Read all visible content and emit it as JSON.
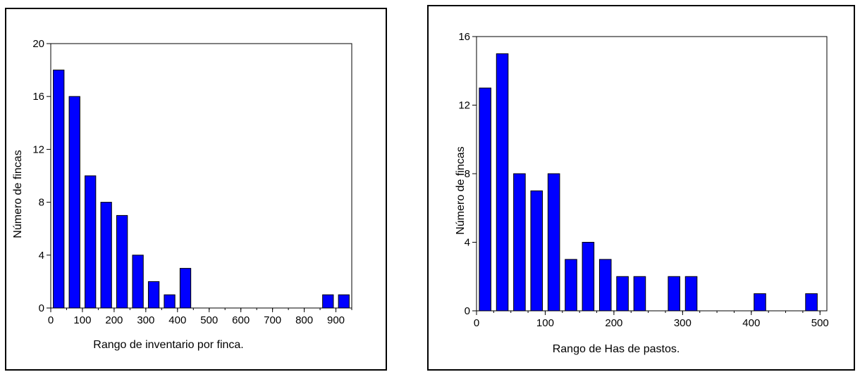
{
  "chart_data": [
    {
      "type": "bar",
      "title": "",
      "xlabel": "Rango de inventario por finca.",
      "ylabel": "Número de fincas",
      "xlim": [
        0,
        950
      ],
      "ylim": [
        0,
        20
      ],
      "x_ticks": [
        0,
        100,
        200,
        300,
        400,
        500,
        600,
        700,
        800,
        900
      ],
      "y_ticks": [
        0,
        4,
        8,
        12,
        16,
        20
      ],
      "bin_width": 50,
      "x": [
        25,
        75,
        125,
        175,
        225,
        275,
        325,
        375,
        425,
        475,
        525,
        575,
        625,
        675,
        725,
        775,
        825,
        875,
        925
      ],
      "values": [
        18,
        16,
        10,
        8,
        7,
        4,
        2,
        1,
        3,
        0,
        0,
        0,
        0,
        0,
        0,
        0,
        0,
        1,
        1
      ],
      "bar_color": "#0000ff",
      "grid": false
    },
    {
      "type": "bar",
      "title": "",
      "xlabel": "Rango de Has de pastos.",
      "ylabel": "Número de fincas",
      "xlim": [
        0,
        510
      ],
      "ylim": [
        0,
        16
      ],
      "x_ticks": [
        0,
        100,
        200,
        300,
        400,
        500
      ],
      "y_ticks": [
        0,
        4,
        8,
        12,
        16
      ],
      "bin_width": 25,
      "x": [
        12.5,
        37.5,
        62.5,
        87.5,
        112.5,
        137.5,
        162.5,
        187.5,
        212.5,
        237.5,
        262.5,
        287.5,
        312.5,
        337.5,
        362.5,
        387.5,
        412.5,
        437.5,
        462.5,
        487.5
      ],
      "values": [
        13,
        15,
        8,
        7,
        8,
        3,
        4,
        3,
        2,
        2,
        0,
        2,
        2,
        0,
        0,
        0,
        1,
        0,
        0,
        1
      ],
      "bar_color": "#0000ff",
      "grid": false
    }
  ]
}
